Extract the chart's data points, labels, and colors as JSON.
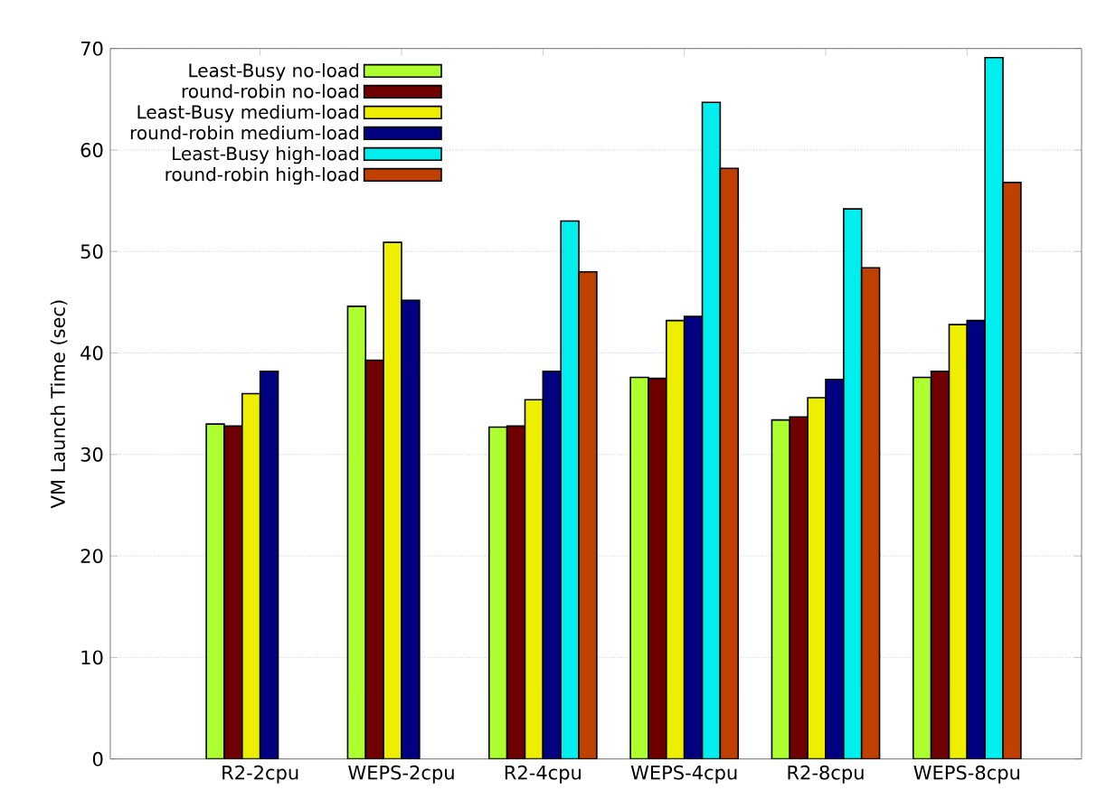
{
  "chart_data": {
    "type": "bar",
    "ylabel": "VM Launch Time (sec)",
    "categories": [
      "R2-2cpu",
      "WEPS-2cpu",
      "R2-4cpu",
      "WEPS-4cpu",
      "R2-8cpu",
      "WEPS-8cpu"
    ],
    "series": [
      {
        "name": "Least-Busy no-load",
        "color": "#adff2f",
        "values": [
          33.0,
          44.6,
          32.7,
          37.6,
          33.4,
          37.6
        ]
      },
      {
        "name": "round-robin no-load",
        "color": "#6e0000",
        "values": [
          32.8,
          39.3,
          32.8,
          37.5,
          33.7,
          38.2
        ]
      },
      {
        "name": "Least-Busy medium-load",
        "color": "#eeee00",
        "values": [
          36.0,
          50.9,
          35.4,
          43.2,
          35.6,
          42.8
        ]
      },
      {
        "name": "round-robin medium-load",
        "color": "#000080",
        "values": [
          38.2,
          45.2,
          38.2,
          43.6,
          37.4,
          43.2
        ]
      },
      {
        "name": "Least-Busy high-load",
        "color": "#00eeee",
        "values": [
          null,
          null,
          53.0,
          64.7,
          54.2,
          69.1
        ]
      },
      {
        "name": "round-robin high-load",
        "color": "#c04000",
        "values": [
          null,
          null,
          48.0,
          58.2,
          48.4,
          56.8
        ]
      }
    ],
    "ylim": [
      0,
      70
    ],
    "yticks": [
      0,
      10,
      20,
      30,
      40,
      50,
      60,
      70
    ],
    "grid": "y",
    "legend": "top left"
  }
}
